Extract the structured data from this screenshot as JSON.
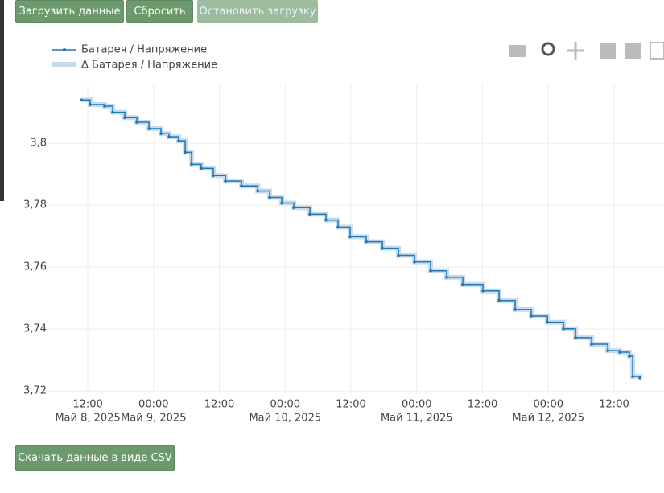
{
  "top_buttons": [
    "Загрузить данные",
    "Сбросить",
    "Остановить загрузку"
  ],
  "download_button": "Скачать данные в виде CSV",
  "chart_data": {
    "type": "line",
    "series": [
      {
        "name": "Батарея / Напряжение",
        "color": "#1f77b4",
        "x": [
          "2025-05-08T10:50",
          "2025-05-08T12:26",
          "2025-05-08T15:05",
          "2025-05-08T16:33",
          "2025-05-08T18:45",
          "2025-05-08T20:57",
          "2025-05-08T23:10",
          "2025-05-09T01:22",
          "2025-05-09T02:50",
          "2025-05-09T04:35",
          "2025-05-09T05:46",
          "2025-05-09T06:56",
          "2025-05-09T08:42",
          "2025-05-09T10:54",
          "2025-05-09T13:06",
          "2025-05-09T16:02",
          "2025-05-09T19:00",
          "2025-05-09T21:11",
          "2025-05-09T23:23",
          "2025-05-10T01:35",
          "2025-05-10T04:31",
          "2025-05-10T07:27",
          "2025-05-10T09:39",
          "2025-05-10T11:51",
          "2025-05-10T14:47",
          "2025-05-10T17:44",
          "2025-05-10T20:40",
          "2025-05-10T23:36",
          "2025-05-11T02:32",
          "2025-05-11T05:28",
          "2025-05-11T08:24",
          "2025-05-11T12:04",
          "2025-05-11T15:01",
          "2025-05-11T17:57",
          "2025-05-11T20:53",
          "2025-05-11T23:50",
          "2025-05-12T02:46",
          "2025-05-12T04:58",
          "2025-05-12T07:54",
          "2025-05-12T10:50",
          "2025-05-12T13:02",
          "2025-05-12T14:47",
          "2025-05-12T15:23",
          "2025-05-12T16:42"
        ],
        "values": [
          3.814,
          3.8125,
          3.812,
          3.81,
          3.8083,
          3.8068,
          3.8047,
          3.8031,
          3.8021,
          3.8008,
          3.7971,
          3.7932,
          3.7919,
          3.7896,
          3.7878,
          3.7862,
          3.7846,
          3.7825,
          3.7807,
          3.7792,
          3.7771,
          3.7752,
          3.7729,
          3.7698,
          3.7682,
          3.7661,
          3.7638,
          3.7617,
          3.7588,
          3.7567,
          3.7544,
          3.7523,
          3.7492,
          3.7463,
          3.7442,
          3.7422,
          3.7401,
          3.7372,
          3.7351,
          3.733,
          3.7325,
          3.7312,
          3.7247,
          3.7242
        ]
      },
      {
        "name": "Δ Батарея / Напряжение",
        "color": "#c6dbef"
      }
    ],
    "xlim": [
      "2025-05-08T04:48",
      "2025-05-12T21:06"
    ],
    "xticks": [
      {
        "value": "2025-05-08T12:00",
        "label": "12:00",
        "date": "Май 8, 2025"
      },
      {
        "value": "2025-05-09T00:00",
        "label": "00:00",
        "date": "Май 9, 2025"
      },
      {
        "value": "2025-05-09T12:00",
        "label": "12:00"
      },
      {
        "value": "2025-05-10T00:00",
        "label": "00:00",
        "date": "Май 10, 2025"
      },
      {
        "value": "2025-05-10T12:00",
        "label": "12:00"
      },
      {
        "value": "2025-05-11T00:00",
        "label": "00:00",
        "date": "Май 11, 2025"
      },
      {
        "value": "2025-05-11T12:00",
        "label": "12:00"
      },
      {
        "value": "2025-05-12T00:00",
        "label": "00:00",
        "date": "Май 12, 2025"
      },
      {
        "value": "2025-05-12T12:00",
        "label": "12:00"
      }
    ],
    "ylim": [
      3.719,
      3.819
    ],
    "yticks": [
      {
        "value": 3.72,
        "label": "3,72"
      },
      {
        "value": 3.74,
        "label": "3,74"
      },
      {
        "value": 3.76,
        "label": "3,76"
      },
      {
        "value": 3.78,
        "label": "3,78"
      },
      {
        "value": 3.8,
        "label": "3,8"
      }
    ],
    "grid": true
  }
}
